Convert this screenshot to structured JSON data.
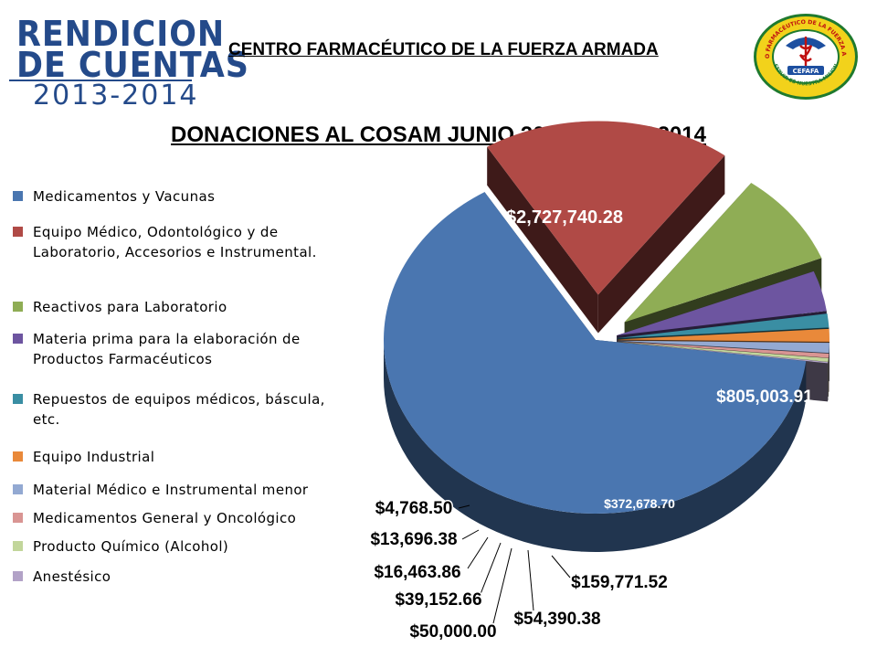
{
  "brand": {
    "line1": "RENDICION",
    "line2": "DE CUENTAS",
    "line3": "2013-2014"
  },
  "header": {
    "org_title": "CENTRO FARMACÉUTICO DE LA FUERZA ARMADA"
  },
  "logo": {
    "ring_text": "CENTRO FARMACÉUTICO DE LA FUERZA ARMADA",
    "bottom_text": "SERVIR ES NUESTRA MISION",
    "center_text": "CEFAFA",
    "colors": {
      "ring": "#f2d21b",
      "border": "#1f7a2e",
      "center": "#1d4fa0",
      "text": "#c01010"
    }
  },
  "chart_data": {
    "type": "pie",
    "title": "DONACIONES AL COSAM JUNIO 2013 – MAYO2014",
    "legend_position": "left",
    "categories": [
      "Medicamentos  y Vacunas",
      "Equipo Médico, Odontológico y de Laboratorio, Accesorios e Instrumental.",
      "Reactivos para Laboratorio",
      "Materia prima para la elaboración de Productos Farmacéuticos",
      "Repuestos de equipos médicos, báscula, etc.",
      "Equipo Industrial",
      "Material Médico e Instrumental menor",
      "Medicamentos General y Oncológico",
      "Producto Químico (Alcohol)",
      "Anestésico"
    ],
    "values": [
      2727740.28,
      805003.91,
      372678.7,
      159771.52,
      54390.38,
      50000.0,
      39152.66,
      16463.86,
      13696.38,
      4768.5
    ],
    "data_labels": [
      "$2,727,740.28",
      "$805,003.91",
      "$372,678.70",
      "$159,771.52",
      "$54,390.38",
      "$50,000.00",
      "$39,152.66",
      "$16,463.86",
      "$13,696.38",
      "$4,768.50"
    ],
    "colors": [
      "#4a76b0",
      "#b04a46",
      "#8fad55",
      "#6d55a0",
      "#3a8ea3",
      "#e9893a",
      "#93a9d2",
      "#d99593",
      "#c2d69b",
      "#b2a2c7"
    ]
  }
}
